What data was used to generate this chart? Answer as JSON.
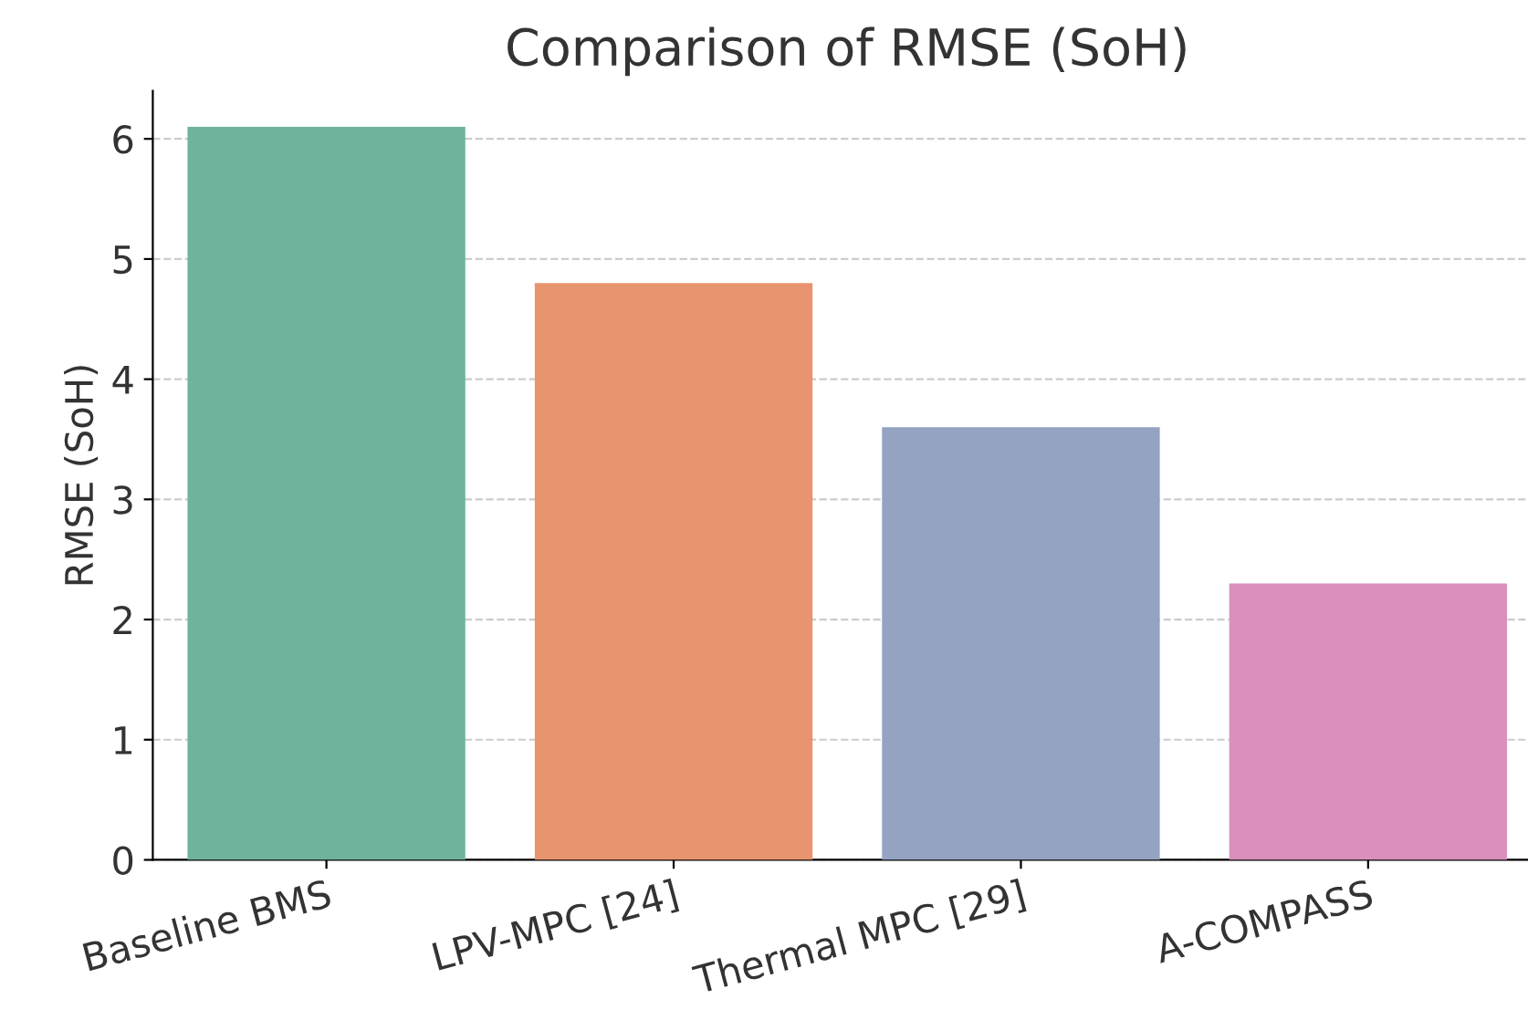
{
  "chart_data": {
    "type": "bar",
    "title": "Comparison of RMSE (SoH)",
    "ylabel": "RMSE (SoH)",
    "categories": [
      "Baseline BMS",
      "LPV-MPC [24]",
      "Thermal MPC [29]",
      "A-COMPASS"
    ],
    "values": [
      6.1,
      4.8,
      3.6,
      2.3
    ],
    "colors": [
      "#6fb39c",
      "#e8956f",
      "#94a3c2",
      "#da8fbd"
    ],
    "ylim": [
      0,
      6.4
    ],
    "yticks": [
      0,
      1,
      2,
      3,
      4,
      5,
      6
    ],
    "grid": "y",
    "legend": false
  }
}
